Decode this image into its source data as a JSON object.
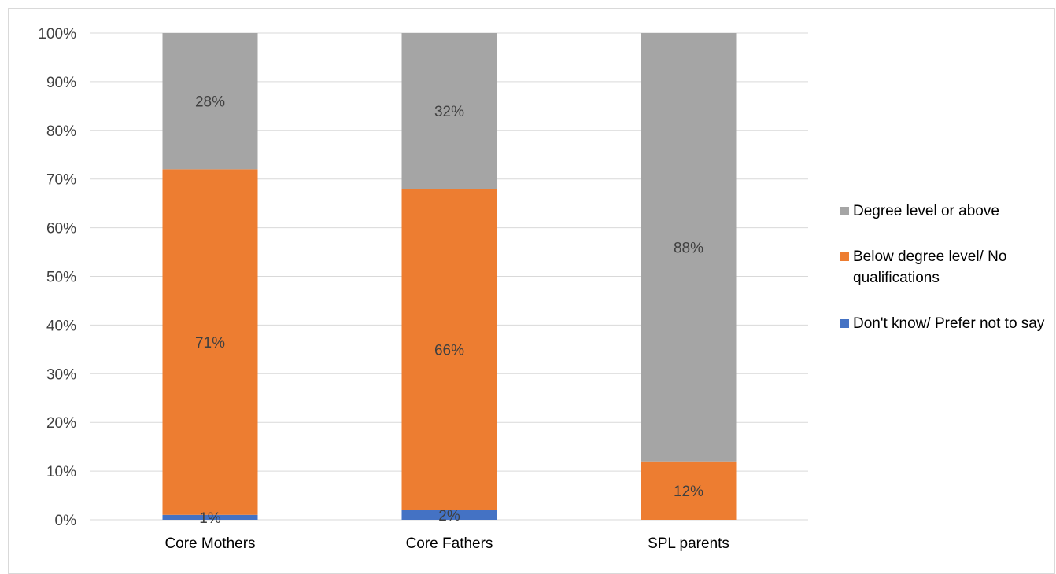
{
  "chart_data": {
    "type": "bar",
    "stacked": true,
    "title": "",
    "xlabel": "",
    "ylabel": "",
    "ylim": [
      0,
      100
    ],
    "yticks": [
      "0%",
      "10%",
      "20%",
      "30%",
      "40%",
      "50%",
      "60%",
      "70%",
      "80%",
      "90%",
      "100%"
    ],
    "grid": true,
    "legend_position": "right",
    "categories": [
      "Core Mothers",
      "Core Fathers",
      "SPL parents"
    ],
    "series": [
      {
        "name": "Don't know/ Prefer not to say",
        "color": "#4472c4",
        "values": [
          1,
          2,
          0
        ],
        "labels": [
          "1%",
          "2%",
          ""
        ]
      },
      {
        "name": "Below degree level/ No qualifications",
        "color": "#ed7d31",
        "values": [
          71,
          66,
          12
        ],
        "labels": [
          "71%",
          "66%",
          "12%"
        ]
      },
      {
        "name": "Degree level or above",
        "color": "#a5a5a5",
        "values": [
          28,
          32,
          88
        ],
        "labels": [
          "28%",
          "32%",
          "88%"
        ]
      }
    ],
    "legend_order": [
      2,
      1,
      0
    ]
  }
}
